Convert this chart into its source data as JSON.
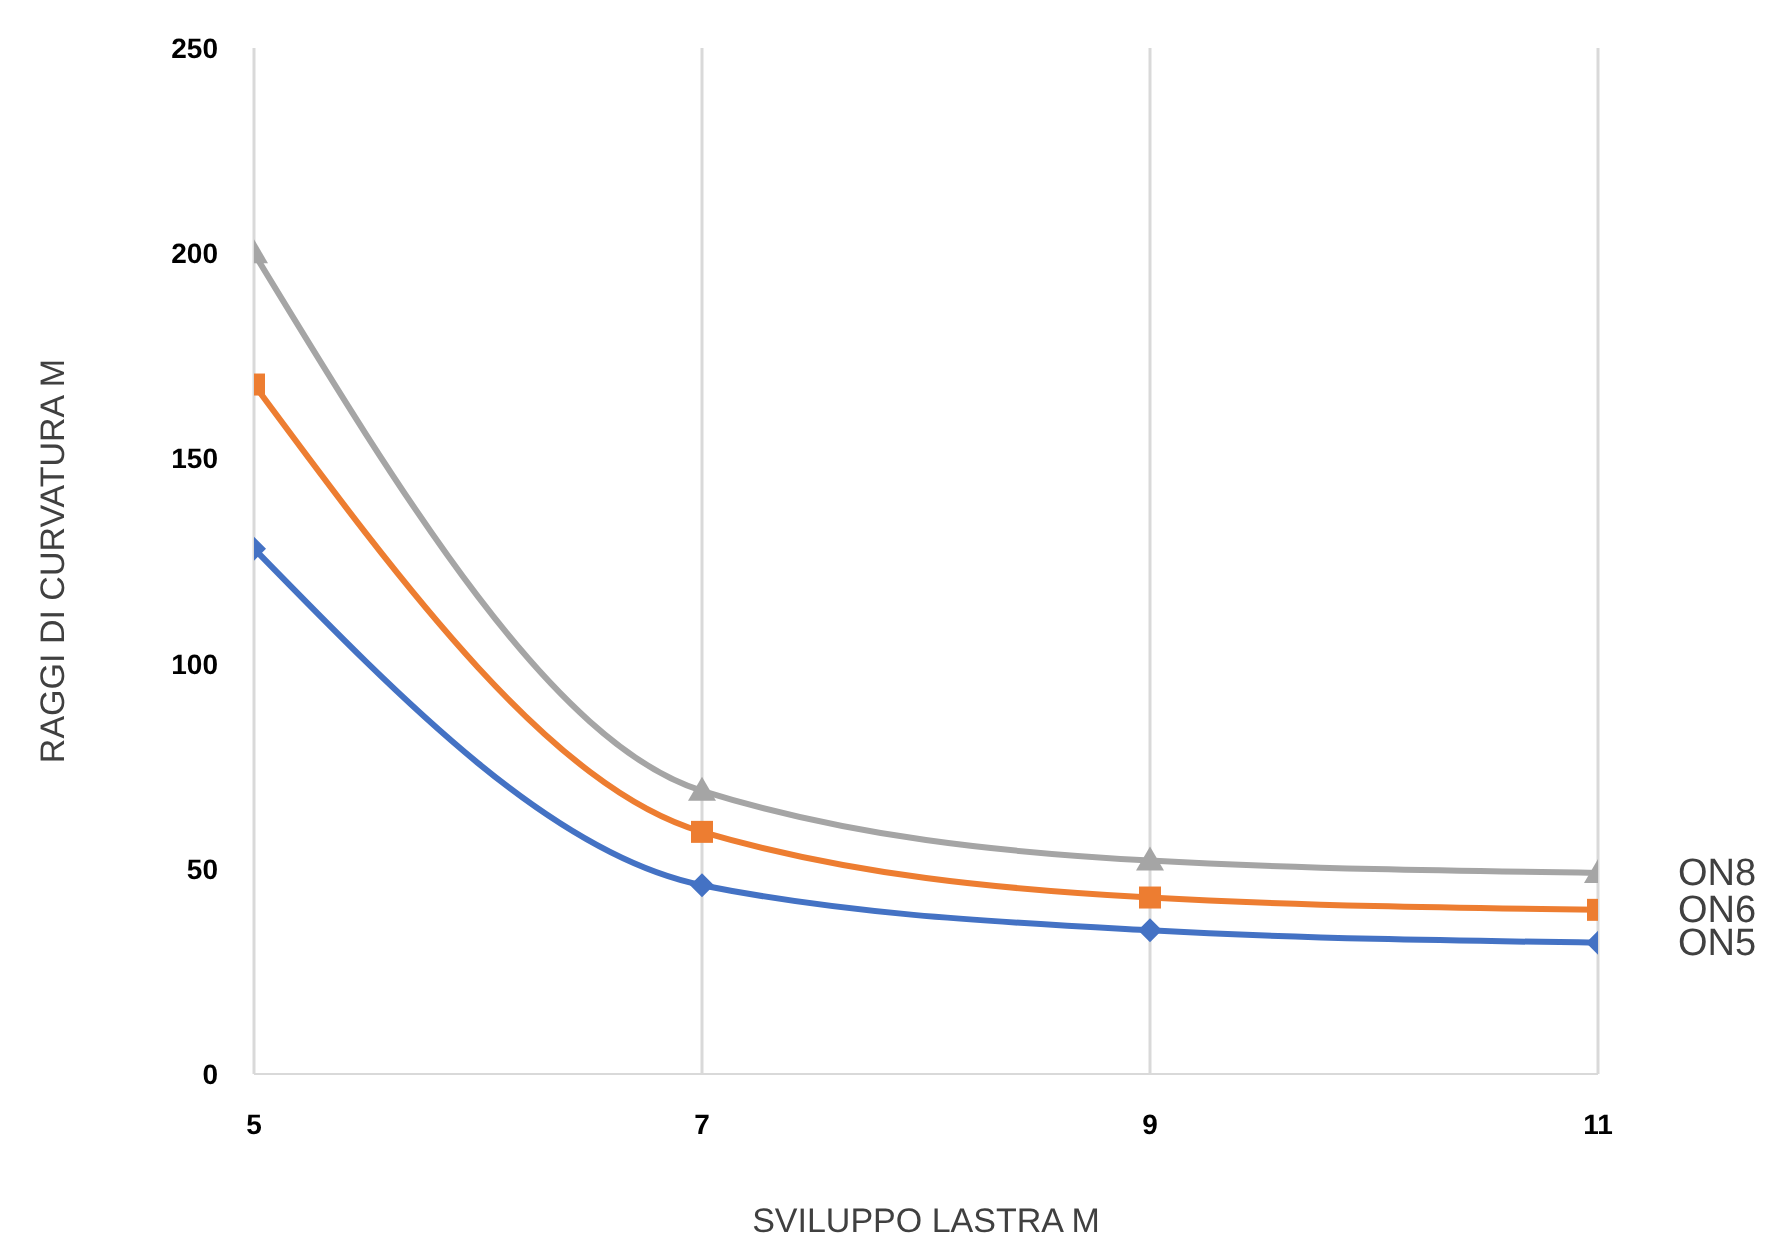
{
  "chart_data": {
    "type": "line",
    "xlabel": "SVILUPPO  LASTRA M",
    "ylabel": "RAGGI DI CURVATURA M",
    "x": [
      5,
      7,
      9,
      11
    ],
    "xlim": [
      5,
      11
    ],
    "xticks": [
      5,
      7,
      9,
      11
    ],
    "ylim": [
      0,
      250
    ],
    "yticks": [
      0,
      50,
      100,
      150,
      200,
      250
    ],
    "grid": "x",
    "legend": false,
    "series": [
      {
        "name": "ON5",
        "color": "#4472c4",
        "marker": "diamond",
        "values": [
          128,
          46,
          35,
          32
        ]
      },
      {
        "name": "ON6",
        "color": "#ed7d31",
        "marker": "square",
        "values": [
          168,
          59,
          43,
          40
        ]
      },
      {
        "name": "ON8",
        "color": "#a5a5a5",
        "marker": "triangle",
        "values": [
          200,
          69,
          52,
          49
        ]
      }
    ]
  }
}
